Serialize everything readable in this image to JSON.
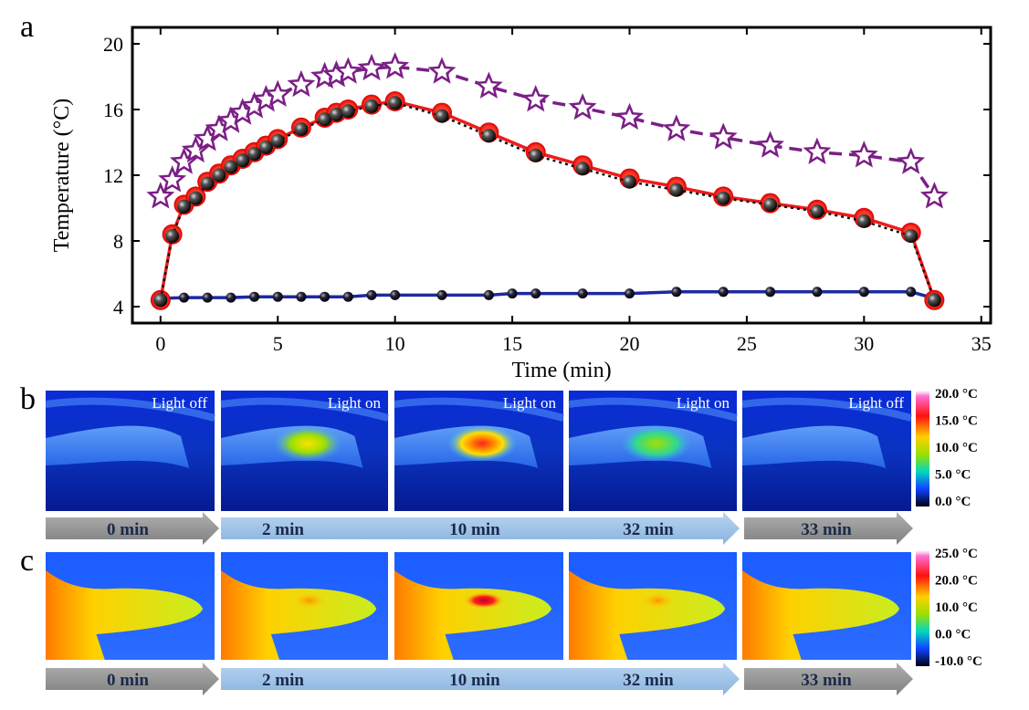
{
  "panel_labels": [
    "a",
    "b",
    "c"
  ],
  "chart_data": {
    "type": "line",
    "xlabel": "Time (min)",
    "ylabel": "Temperature (°C)",
    "xlim": [
      -1.2,
      35.4
    ],
    "ylim": [
      3,
      21
    ],
    "xticks": [
      0,
      5,
      10,
      15,
      20,
      25,
      30,
      35
    ],
    "yticks": [
      4,
      8,
      12,
      16,
      20
    ],
    "series": [
      {
        "color": "#7b1f86",
        "marker": "star",
        "dash": "14 8",
        "x": [
          0,
          0.5,
          1,
          1.5,
          2,
          2.5,
          3,
          3.5,
          4,
          4.5,
          5,
          6,
          7,
          7.5,
          8,
          9,
          10,
          12,
          14,
          16,
          18,
          20,
          22,
          24,
          26,
          28,
          30,
          32,
          33
        ],
        "values": [
          10.7,
          11.7,
          12.8,
          13.5,
          14.2,
          14.8,
          15.3,
          15.8,
          16.2,
          16.6,
          16.9,
          17.5,
          18.0,
          18.1,
          18.3,
          18.5,
          18.6,
          18.3,
          17.4,
          16.6,
          16.1,
          15.5,
          14.8,
          14.3,
          13.8,
          13.4,
          13.2,
          12.8,
          10.7
        ]
      },
      {
        "color": "#1c2aa0",
        "marker": "small-sphere",
        "dash": "",
        "x": [
          0,
          1,
          2,
          3,
          4,
          5,
          6,
          7,
          8,
          9,
          10,
          12,
          14,
          15,
          16,
          18,
          20,
          22,
          24,
          26,
          28,
          30,
          32,
          33
        ],
        "values": [
          4.5,
          4.55,
          4.55,
          4.55,
          4.6,
          4.6,
          4.6,
          4.6,
          4.6,
          4.7,
          4.7,
          4.7,
          4.7,
          4.8,
          4.8,
          4.8,
          4.8,
          4.9,
          4.9,
          4.9,
          4.9,
          4.9,
          4.9,
          4.5
        ]
      },
      {
        "color": "#ee1c1c",
        "marker": "circle",
        "dash": "",
        "x": [
          0,
          0.5,
          1,
          1.5,
          2,
          2.5,
          3,
          3.5,
          4,
          4.5,
          5,
          6,
          7,
          7.5,
          8,
          9,
          10,
          12,
          14,
          16,
          18,
          20,
          22,
          24,
          26,
          28,
          30,
          32,
          33
        ],
        "values": [
          4.4,
          8.4,
          10.2,
          10.7,
          11.6,
          12.1,
          12.6,
          13.0,
          13.4,
          13.8,
          14.2,
          14.9,
          15.5,
          15.8,
          16.0,
          16.3,
          16.5,
          15.8,
          14.6,
          13.4,
          12.6,
          11.8,
          11.3,
          10.7,
          10.3,
          9.9,
          9.4,
          8.5,
          4.4
        ]
      },
      {
        "color": "#111111",
        "marker": "sphere",
        "dash": "3 4",
        "x": [
          0,
          0.5,
          1,
          1.5,
          2,
          2.5,
          3,
          3.5,
          4,
          4.5,
          5,
          6,
          7,
          7.5,
          8,
          9,
          10,
          12,
          14,
          16,
          18,
          20,
          22,
          24,
          26,
          28,
          30,
          32,
          33
        ],
        "values": [
          4.4,
          8.3,
          10.1,
          10.6,
          11.5,
          12.0,
          12.5,
          12.9,
          13.3,
          13.7,
          14.1,
          14.8,
          15.4,
          15.7,
          15.9,
          16.2,
          16.4,
          15.6,
          14.4,
          13.2,
          12.4,
          11.6,
          11.1,
          10.6,
          10.2,
          9.8,
          9.2,
          8.3,
          4.4
        ]
      }
    ]
  },
  "panel_b": {
    "image_labels": [
      "Light off",
      "Light on",
      "Light on",
      "Light on",
      "Light off"
    ],
    "colorbar": [
      "20.0 °C",
      "15.0 °C",
      "10.0 °C",
      "5.0 °C",
      "0.0 °C"
    ],
    "arrows": [
      "0 min",
      "2 min",
      "10 min",
      "32 min",
      "33 min"
    ]
  },
  "panel_c": {
    "colorbar": [
      "25.0 °C",
      "20.0 °C",
      "10.0 °C",
      "0.0 °C",
      "-10.0 °C"
    ],
    "arrows": [
      "0 min",
      "2 min",
      "10 min",
      "32 min",
      "33 min"
    ]
  }
}
